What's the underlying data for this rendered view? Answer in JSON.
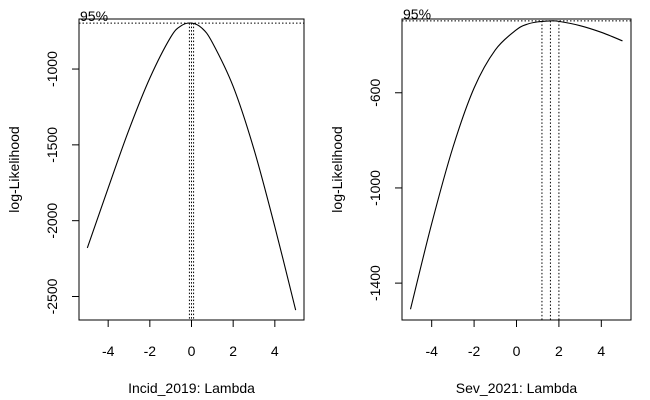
{
  "chart_data": [
    {
      "type": "line",
      "xlabel": "Incid_2019: Lambda",
      "ylabel": "log-Likelihood",
      "xlim": [
        -5.4,
        5.4
      ],
      "ylim": [
        -2655,
        -670
      ],
      "xticks": [
        -4,
        -2,
        0,
        2,
        4
      ],
      "yticks": [
        -1000,
        -1500,
        -2000,
        -2500
      ],
      "grid": false,
      "ci_label": "95%",
      "ci_level": -697,
      "ci_lambda": [
        -0.1,
        0.0,
        0.1
      ],
      "series": [
        {
          "x": [
            -5.0,
            -4.0,
            -3.0,
            -2.0,
            -1.0,
            -0.5,
            0.0,
            0.5,
            1.0,
            2.0,
            3.0,
            4.0,
            5.0
          ],
          "y": [
            -2180,
            -1785,
            -1400,
            -1060,
            -790,
            -715,
            -697,
            -730,
            -825,
            -1115,
            -1530,
            -2040,
            -2590
          ]
        }
      ]
    },
    {
      "type": "line",
      "xlabel": "Sev_2021: Lambda",
      "ylabel": "log-Likelihood",
      "xlim": [
        -5.4,
        5.4
      ],
      "ylim": [
        -1555,
        -290
      ],
      "xticks": [
        -4,
        -2,
        0,
        2,
        4
      ],
      "yticks": [
        -600,
        -1000,
        -1400
      ],
      "grid": false,
      "ci_label": "95%",
      "ci_level": -298,
      "ci_lambda": [
        1.2,
        1.6,
        2.0
      ],
      "series": [
        {
          "x": [
            -5.0,
            -4.0,
            -3.0,
            -2.0,
            -1.0,
            0.0,
            0.5,
            1.0,
            1.6,
            2.0,
            3.0,
            4.0,
            5.0
          ],
          "y": [
            -1510,
            -1150,
            -830,
            -580,
            -420,
            -335,
            -312,
            -302,
            -298,
            -300,
            -318,
            -346,
            -382
          ]
        }
      ]
    }
  ]
}
